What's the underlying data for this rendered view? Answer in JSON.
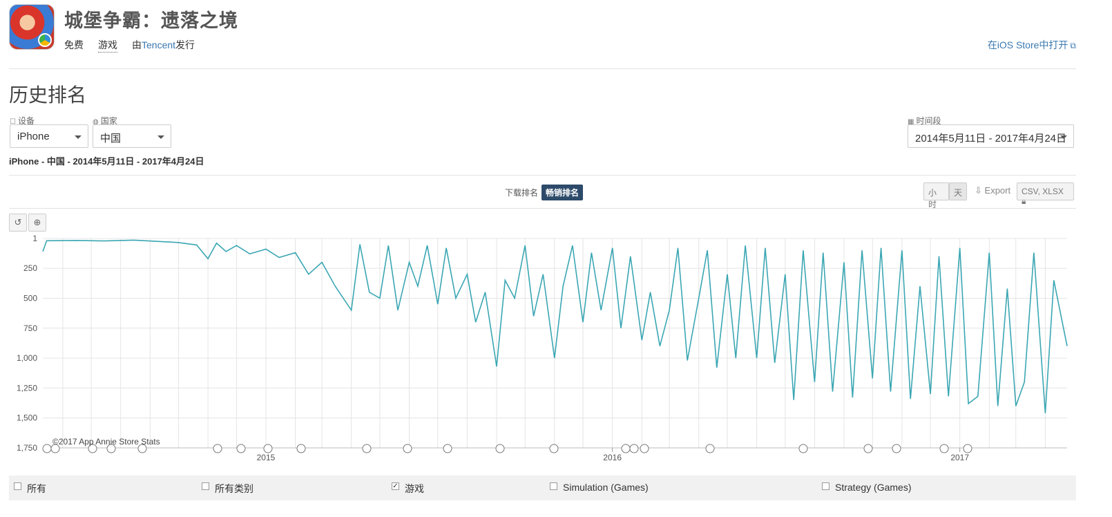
{
  "app": {
    "title": "城堡争霸：遗落之境",
    "price": "免费",
    "category": "游戏",
    "publisher_prefix": "由",
    "publisher": "Tencent",
    "publisher_suffix": "发行",
    "open_store": "在iOS Store中打开"
  },
  "section": {
    "title": "历史排名",
    "device_label": "设备",
    "device_value": "iPhone",
    "country_label": "国家",
    "country_value": "中国",
    "period_label": "时间段",
    "period_value": "2014年5月11日 - 2017年4月24日",
    "subtitle": "iPhone - 中国 - 2014年5月11日 - 2017年4月24日"
  },
  "toolbar": {
    "tab_downloads": "下载排名",
    "tab_revenue": "畅销排名",
    "hour": "小时",
    "day": "天",
    "export": "Export",
    "csv_xlsx": "CSV, XLSX"
  },
  "legend": {
    "items": [
      {
        "label": "所有",
        "checked": false
      },
      {
        "label": "所有类别",
        "checked": false
      },
      {
        "label": "游戏",
        "checked": true
      },
      {
        "label": "Simulation (Games)",
        "checked": false
      },
      {
        "label": "Strategy (Games)",
        "checked": false
      }
    ]
  },
  "colors": {
    "line": "#3aa6b3",
    "link": "#3a78b0",
    "active_tab": "#2d4a6a"
  },
  "chart_data": {
    "type": "line",
    "series": [
      {
        "name": "游戏",
        "color": "#3aa6b3"
      }
    ],
    "y_axis": {
      "reversed": true,
      "ylim": [
        1,
        1750
      ],
      "ticks": [
        "1",
        "250",
        "500",
        "750",
        "1,000",
        "1,250",
        "1,500",
        "1,750"
      ],
      "tick_values": [
        1,
        250,
        500,
        750,
        1000,
        1250,
        1500,
        1750
      ]
    },
    "x_axis": {
      "labels": [
        "2015",
        "2016",
        "2017"
      ],
      "xlim": [
        "2014-05-11",
        "2017-04-24"
      ]
    },
    "credit": "©2017 App Annie Store Stats",
    "points": [
      [
        "2014-05-11",
        110
      ],
      [
        "2014-05-15",
        20
      ],
      [
        "2014-06-15",
        18
      ],
      [
        "2014-07-15",
        22
      ],
      [
        "2014-08-15",
        15
      ],
      [
        "2014-09-15",
        28
      ],
      [
        "2014-10-01",
        35
      ],
      [
        "2014-10-20",
        55
      ],
      [
        "2014-11-01",
        170
      ],
      [
        "2014-11-10",
        40
      ],
      [
        "2014-11-20",
        110
      ],
      [
        "2014-12-01",
        60
      ],
      [
        "2014-12-15",
        130
      ],
      [
        "2015-01-01",
        90
      ],
      [
        "2015-01-15",
        160
      ],
      [
        "2015-02-01",
        120
      ],
      [
        "2015-02-15",
        300
      ],
      [
        "2015-03-01",
        200
      ],
      [
        "2015-03-15",
        400
      ],
      [
        "2015-04-01",
        600
      ],
      [
        "2015-04-10",
        50
      ],
      [
        "2015-04-20",
        450
      ],
      [
        "2015-05-01",
        500
      ],
      [
        "2015-05-10",
        60
      ],
      [
        "2015-05-20",
        600
      ],
      [
        "2015-06-01",
        200
      ],
      [
        "2015-06-10",
        400
      ],
      [
        "2015-06-20",
        60
      ],
      [
        "2015-07-01",
        550
      ],
      [
        "2015-07-10",
        80
      ],
      [
        "2015-07-20",
        500
      ],
      [
        "2015-08-01",
        300
      ],
      [
        "2015-08-10",
        700
      ],
      [
        "2015-08-20",
        450
      ],
      [
        "2015-09-01",
        1070
      ],
      [
        "2015-09-10",
        350
      ],
      [
        "2015-09-20",
        500
      ],
      [
        "2015-10-01",
        60
      ],
      [
        "2015-10-10",
        650
      ],
      [
        "2015-10-20",
        300
      ],
      [
        "2015-11-01",
        1000
      ],
      [
        "2015-11-10",
        400
      ],
      [
        "2015-11-20",
        60
      ],
      [
        "2015-12-01",
        700
      ],
      [
        "2015-12-10",
        120
      ],
      [
        "2015-12-20",
        600
      ],
      [
        "2016-01-01",
        80
      ],
      [
        "2016-01-10",
        750
      ],
      [
        "2016-01-20",
        150
      ],
      [
        "2016-02-01",
        850
      ],
      [
        "2016-02-10",
        450
      ],
      [
        "2016-02-20",
        900
      ],
      [
        "2016-03-01",
        600
      ],
      [
        "2016-03-10",
        80
      ],
      [
        "2016-03-20",
        1020
      ],
      [
        "2016-04-01",
        500
      ],
      [
        "2016-04-10",
        100
      ],
      [
        "2016-04-20",
        1080
      ],
      [
        "2016-05-01",
        300
      ],
      [
        "2016-05-10",
        1000
      ],
      [
        "2016-05-20",
        60
      ],
      [
        "2016-06-01",
        1000
      ],
      [
        "2016-06-10",
        80
      ],
      [
        "2016-06-20",
        1040
      ],
      [
        "2016-07-01",
        300
      ],
      [
        "2016-07-10",
        1350
      ],
      [
        "2016-07-20",
        100
      ],
      [
        "2016-08-01",
        1200
      ],
      [
        "2016-08-10",
        120
      ],
      [
        "2016-08-20",
        1280
      ],
      [
        "2016-09-01",
        200
      ],
      [
        "2016-09-10",
        1330
      ],
      [
        "2016-09-20",
        100
      ],
      [
        "2016-10-01",
        1170
      ],
      [
        "2016-10-10",
        80
      ],
      [
        "2016-10-20",
        1280
      ],
      [
        "2016-11-01",
        100
      ],
      [
        "2016-11-10",
        1340
      ],
      [
        "2016-11-20",
        400
      ],
      [
        "2016-12-01",
        1300
      ],
      [
        "2016-12-10",
        150
      ],
      [
        "2016-12-20",
        1320
      ],
      [
        "2017-01-01",
        80
      ],
      [
        "2017-01-10",
        1380
      ],
      [
        "2017-01-20",
        1320
      ],
      [
        "2017-02-01",
        120
      ],
      [
        "2017-02-10",
        1400
      ],
      [
        "2017-02-20",
        420
      ],
      [
        "2017-03-01",
        1400
      ],
      [
        "2017-03-10",
        1200
      ],
      [
        "2017-03-20",
        120
      ],
      [
        "2017-04-01",
        1460
      ],
      [
        "2017-04-10",
        350
      ],
      [
        "2017-04-24",
        900
      ]
    ]
  }
}
